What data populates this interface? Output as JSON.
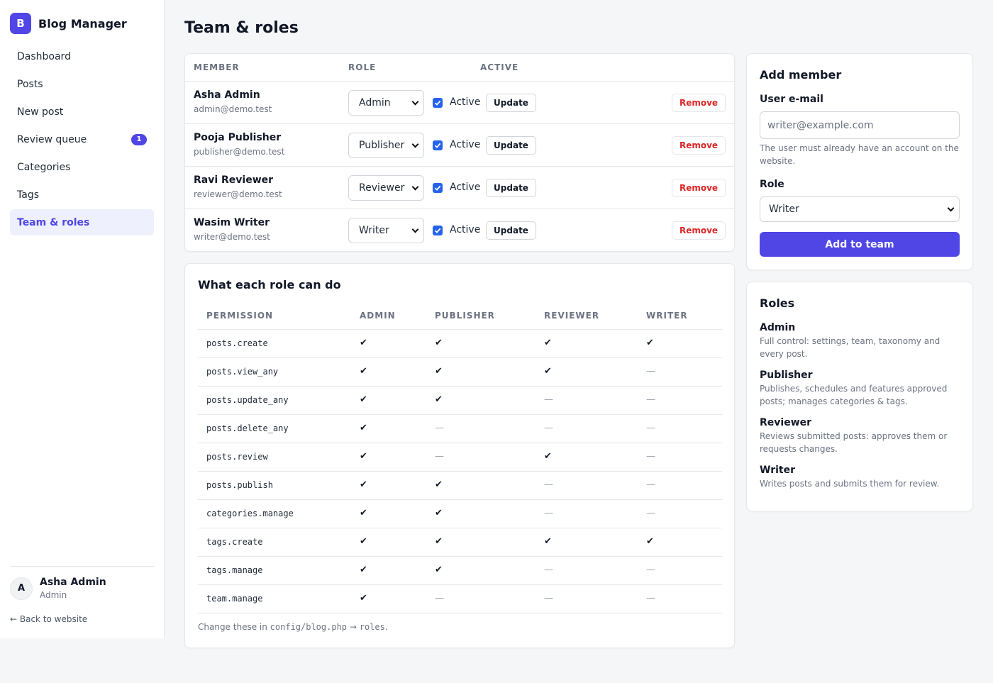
{
  "brand": {
    "logo_letter": "B",
    "name": "Blog Manager",
    "accent": "#4f46e5"
  },
  "nav": {
    "items": [
      {
        "label": "Dashboard"
      },
      {
        "label": "Posts"
      },
      {
        "label": "New post"
      },
      {
        "label": "Review queue",
        "badge": "1"
      },
      {
        "label": "Categories"
      },
      {
        "label": "Tags"
      },
      {
        "label": "Team & roles",
        "active": true
      }
    ]
  },
  "current_user": {
    "initial": "A",
    "name": "Asha Admin",
    "role": "Admin",
    "back_link": "← Back to website"
  },
  "page": {
    "title": "Team & roles"
  },
  "team_table": {
    "headers": {
      "member": "MEMBER",
      "role": "ROLE",
      "active": "ACTIVE"
    },
    "members": [
      {
        "name": "Asha Admin",
        "email": "admin@demo.test",
        "role": "Admin",
        "active": true,
        "active_label": "Active",
        "update_label": "Update",
        "remove_label": "Remove"
      },
      {
        "name": "Pooja Publisher",
        "email": "publisher@demo.test",
        "role": "Publisher",
        "active": true,
        "active_label": "Active",
        "update_label": "Update",
        "remove_label": "Remove"
      },
      {
        "name": "Ravi Reviewer",
        "email": "reviewer@demo.test",
        "role": "Reviewer",
        "active": true,
        "active_label": "Active",
        "update_label": "Update",
        "remove_label": "Remove"
      },
      {
        "name": "Wasim Writer",
        "email": "writer@demo.test",
        "role": "Writer",
        "active": true,
        "active_label": "Active",
        "update_label": "Update",
        "remove_label": "Remove"
      }
    ]
  },
  "permissions": {
    "title": "What each role can do",
    "headers": [
      "PERMISSION",
      "ADMIN",
      "PUBLISHER",
      "REVIEWER",
      "WRITER"
    ],
    "yes_glyph": "✔",
    "no_glyph": "—",
    "rows": [
      {
        "name": "posts.create",
        "values": [
          true,
          true,
          true,
          true
        ]
      },
      {
        "name": "posts.view_any",
        "values": [
          true,
          true,
          true,
          false
        ]
      },
      {
        "name": "posts.update_any",
        "values": [
          true,
          true,
          false,
          false
        ]
      },
      {
        "name": "posts.delete_any",
        "values": [
          true,
          false,
          false,
          false
        ]
      },
      {
        "name": "posts.review",
        "values": [
          true,
          false,
          true,
          false
        ]
      },
      {
        "name": "posts.publish",
        "values": [
          true,
          true,
          false,
          false
        ]
      },
      {
        "name": "categories.manage",
        "values": [
          true,
          true,
          false,
          false
        ]
      },
      {
        "name": "tags.create",
        "values": [
          true,
          true,
          true,
          true
        ]
      },
      {
        "name": "tags.manage",
        "values": [
          true,
          true,
          false,
          false
        ]
      },
      {
        "name": "team.manage",
        "values": [
          true,
          false,
          false,
          false
        ]
      }
    ],
    "note": {
      "prefix": "Change these in ",
      "path": "config/blog.php",
      "arrow": " → ",
      "key": "roles",
      "suffix": "."
    }
  },
  "add_member": {
    "title": "Add member",
    "email_label": "User e-mail",
    "email_placeholder": "writer@example.com",
    "email_value": "",
    "hint": "The user must already have an account on the website.",
    "role_label": "Role",
    "role_value": "Writer",
    "submit_label": "Add to team"
  },
  "roles": {
    "title": "Roles",
    "items": [
      {
        "name": "Admin",
        "description": "Full control: settings, team, taxonomy and every post."
      },
      {
        "name": "Publisher",
        "description": "Publishes, schedules and features approved posts; manages categories & tags."
      },
      {
        "name": "Reviewer",
        "description": "Reviews submitted posts: approves them or requests changes."
      },
      {
        "name": "Writer",
        "description": "Writes posts and submits them for review."
      }
    ]
  }
}
